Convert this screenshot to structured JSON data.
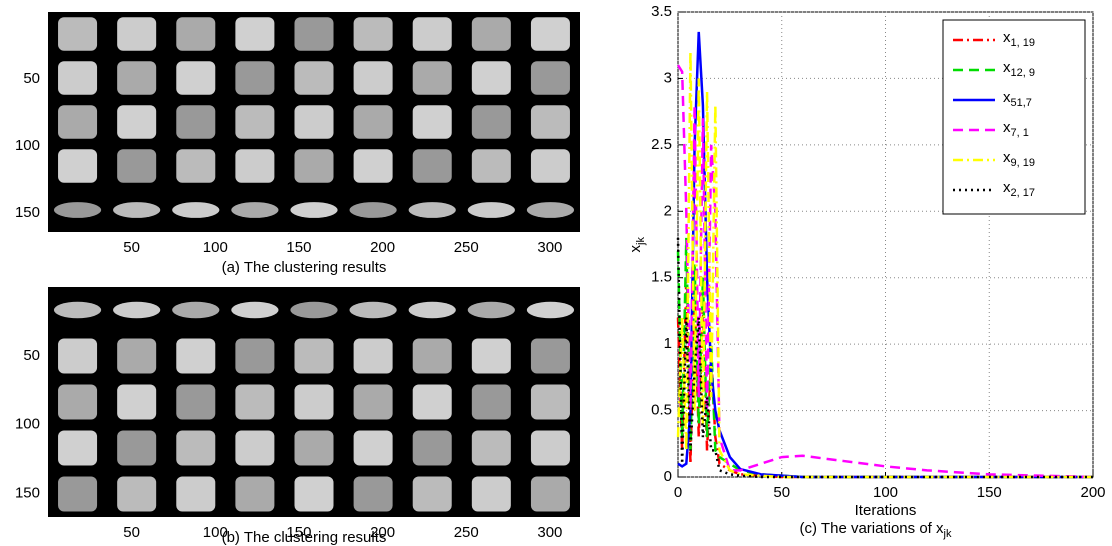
{
  "chart_data": [
    {
      "type": "image",
      "caption": "(a) The clustering results",
      "xlim": [
        0,
        318
      ],
      "ylim": [
        0,
        164
      ],
      "xticks": [
        50,
        100,
        150,
        200,
        250,
        300
      ],
      "yticks": [
        50,
        100,
        150
      ]
    },
    {
      "type": "image",
      "caption": "(b) The clustering results",
      "xlim": [
        0,
        318
      ],
      "ylim": [
        0,
        167
      ],
      "xticks": [
        50,
        100,
        150,
        200,
        250,
        300
      ],
      "yticks": [
        50,
        100,
        150
      ]
    },
    {
      "type": "line",
      "caption": "(c) The variations of xjk",
      "xlabel": "Iterations",
      "ylabel": "xjk",
      "xlim": [
        0,
        200
      ],
      "ylim": [
        0,
        3.5
      ],
      "xticks": [
        0,
        50,
        100,
        150,
        200
      ],
      "yticks": [
        0,
        0.5,
        1,
        1.5,
        2,
        2.5,
        3,
        3.5
      ],
      "grid": true,
      "legend": "upper right",
      "x": [
        0,
        2,
        4,
        6,
        8,
        10,
        12,
        14,
        16,
        18,
        20,
        25,
        30,
        40,
        50,
        60,
        80,
        100,
        120,
        150,
        200
      ],
      "series": [
        {
          "name": "x1, 19",
          "color": "#ff0000",
          "linestyle": "dashdot",
          "values": [
            1.2,
            0.2,
            1.5,
            0.1,
            1.4,
            0.3,
            1.3,
            0.2,
            0.9,
            0.3,
            0.1,
            0.05,
            0.02,
            0.01,
            0,
            0,
            0,
            0,
            0,
            0,
            0
          ]
        },
        {
          "name": "x12, 9",
          "color": "#00dd00",
          "linestyle": "dashed",
          "values": [
            1.7,
            0.3,
            1.8,
            0.2,
            1.6,
            0.4,
            1.5,
            0.3,
            1.0,
            0.2,
            0.15,
            0.1,
            0.05,
            0.02,
            0.01,
            0,
            0,
            0,
            0,
            0,
            0
          ]
        },
        {
          "name": "x51,7",
          "color": "#0000ff",
          "linestyle": "solid",
          "values": [
            0.1,
            0.08,
            0.1,
            0.5,
            2.5,
            3.35,
            2.8,
            1.5,
            0.8,
            0.5,
            0.35,
            0.15,
            0.06,
            0.02,
            0.01,
            0,
            0,
            0,
            0,
            0,
            0
          ]
        },
        {
          "name": "x7, 1",
          "color": "#ff00ff",
          "linestyle": "dashed",
          "values": [
            3.1,
            3.05,
            2.0,
            0.5,
            2.8,
            0.6,
            2.7,
            0.5,
            2.5,
            2.0,
            0.3,
            0.05,
            0.05,
            0.1,
            0.15,
            0.16,
            0.12,
            0.08,
            0.05,
            0.02,
            0
          ]
        },
        {
          "name": "x9, 19",
          "color": "#ffff00",
          "linestyle": "dashdot",
          "values": [
            0.3,
            1.2,
            0.2,
            3.2,
            0.5,
            3.0,
            0.4,
            2.9,
            0.6,
            2.8,
            0.2,
            0.05,
            0.02,
            0.01,
            0,
            0,
            0,
            0,
            0,
            0,
            0
          ]
        },
        {
          "name": "x2, 17",
          "color": "#000000",
          "linestyle": "dotted",
          "values": [
            1.8,
            0.1,
            1.2,
            0.2,
            0.8,
            1.2,
            0.3,
            0.6,
            0.2,
            0.2,
            0.05,
            0.02,
            0.01,
            0,
            0,
            0,
            0,
            0,
            0,
            0,
            0
          ]
        }
      ]
    }
  ]
}
